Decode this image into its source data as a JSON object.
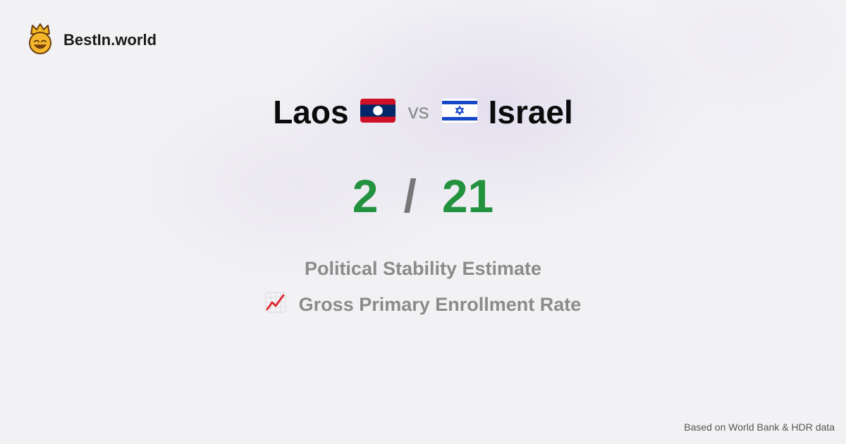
{
  "brand": {
    "name": "BestIn.world",
    "logo_icon": "crowned-smiley-icon"
  },
  "comparison": {
    "country_a": "Laos",
    "flag_a": "laos-flag-icon",
    "vs_label": "vs",
    "country_b": "Israel",
    "flag_b": "israel-flag-icon"
  },
  "score": {
    "value_a": "2",
    "separator": "/",
    "value_b": "21",
    "color": "#23923f"
  },
  "metrics": {
    "primary": "Political Stability Estimate",
    "secondary": "Gross Primary Enrollment Rate",
    "secondary_icon": "trend-chart-icon"
  },
  "footer": {
    "source": "Based on World Bank & HDR data"
  }
}
